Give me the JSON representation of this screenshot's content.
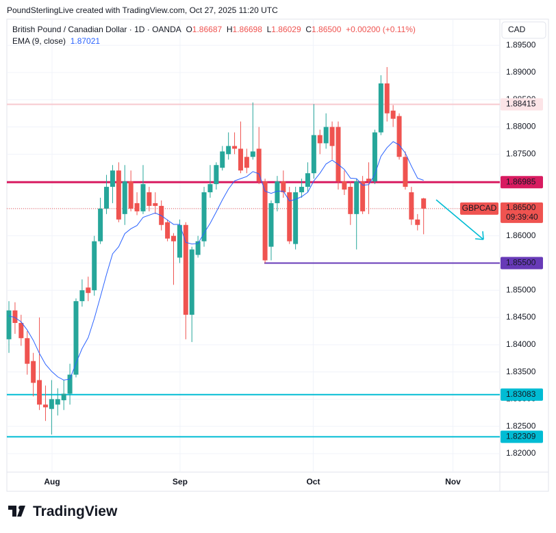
{
  "header": {
    "attribution": "PoundSterlingLive created with TradingView.com, Oct 27, 2025 11:20 UTC",
    "ohlc": [
      {
        "key": "O",
        "value": "1.86687"
      },
      {
        "key": "H",
        "value": "1.86698"
      },
      {
        "key": "L",
        "value": "1.86029"
      },
      {
        "key": "C",
        "value": "1.86500"
      }
    ],
    "change": "+0.00200 (+0.11%)",
    "brand": "TradingView"
  },
  "chart_data": {
    "type": "candlestick",
    "title": "British Pound / Canadian Dollar · 1D · OANDA",
    "currency": "CAD",
    "colors": {
      "up": "#26a69a",
      "down": "#ef5350"
    },
    "open": [
      1.841,
      1.8463,
      1.844,
      1.8412,
      1.837,
      1.8335,
      1.829,
      1.8282,
      1.829,
      1.8298,
      1.831,
      1.8345,
      1.848,
      1.8505,
      1.85,
      1.859,
      1.865,
      1.869,
      1.872,
      1.864,
      1.87,
      1.866,
      1.8645,
      1.868,
      1.866,
      1.8655,
      1.8625,
      1.86,
      1.856,
      1.862,
      1.8455,
      1.8565,
      1.859,
      1.868,
      1.8695,
      1.8725,
      1.875,
      1.8765,
      1.876,
      1.8745,
      1.8745,
      1.876,
      1.87,
      1.858,
      1.866,
      1.87,
      1.868,
      1.8585,
      1.868,
      1.869,
      1.8715,
      1.8785,
      1.877,
      1.88,
      1.88,
      1.87,
      1.869,
      1.864,
      1.87,
      1.8705,
      1.87,
      1.879,
      1.888,
      1.883,
      1.882,
      1.8745,
      1.868,
      1.863,
      1.86687
    ],
    "high": [
      1.848,
      1.8478,
      1.8455,
      1.8425,
      1.8385,
      1.845,
      1.8325,
      1.8335,
      1.832,
      1.8335,
      1.8365,
      1.8485,
      1.852,
      1.8525,
      1.86,
      1.867,
      1.8712,
      1.873,
      1.8735,
      1.873,
      1.872,
      1.868,
      1.873,
      1.869,
      1.868,
      1.8665,
      1.863,
      1.8605,
      1.863,
      1.8625,
      1.858,
      1.86,
      1.869,
      1.873,
      1.8735,
      1.8765,
      1.879,
      1.879,
      1.881,
      1.876,
      1.8845,
      1.88,
      1.8705,
      1.8665,
      1.871,
      1.872,
      1.869,
      1.869,
      1.8705,
      1.8735,
      1.8842,
      1.8795,
      1.8825,
      1.881,
      1.881,
      1.872,
      1.87,
      1.8705,
      1.871,
      1.8735,
      1.8795,
      1.8895,
      1.891,
      1.884,
      1.8825,
      1.8755,
      1.869,
      1.864,
      1.86698
    ],
    "low": [
      1.8385,
      1.842,
      1.8398,
      1.8345,
      1.8305,
      1.828,
      1.826,
      1.8235,
      1.827,
      1.828,
      1.829,
      1.834,
      1.847,
      1.848,
      1.849,
      1.8585,
      1.864,
      1.866,
      1.8625,
      1.862,
      1.8645,
      1.8638,
      1.864,
      1.8645,
      1.864,
      1.861,
      1.859,
      1.851,
      1.855,
      1.841,
      1.8405,
      1.856,
      1.858,
      1.867,
      1.8685,
      1.872,
      1.874,
      1.875,
      1.8715,
      1.8715,
      1.874,
      1.8695,
      1.855,
      1.8555,
      1.8645,
      1.867,
      1.8585,
      1.8575,
      1.867,
      1.868,
      1.8705,
      1.875,
      1.876,
      1.874,
      1.8685,
      1.8675,
      1.862,
      1.8575,
      1.864,
      1.864,
      1.8695,
      1.8785,
      1.881,
      1.88,
      1.874,
      1.8685,
      1.862,
      1.861,
      1.86029
    ],
    "close": [
      1.8463,
      1.844,
      1.8412,
      1.8365,
      1.833,
      1.829,
      1.8285,
      1.83,
      1.83,
      1.831,
      1.8345,
      1.848,
      1.85,
      1.8495,
      1.859,
      1.865,
      1.869,
      1.872,
      1.863,
      1.87,
      1.865,
      1.8645,
      1.8695,
      1.8655,
      1.8655,
      1.862,
      1.8595,
      1.859,
      1.862,
      1.8455,
      1.8575,
      1.859,
      1.868,
      1.8695,
      1.873,
      1.8755,
      1.8765,
      1.876,
      1.872,
      1.8725,
      1.8755,
      1.87,
      1.8555,
      1.866,
      1.87,
      1.868,
      1.859,
      1.868,
      1.869,
      1.8715,
      1.8785,
      1.877,
      1.88,
      1.8765,
      1.87,
      1.8685,
      1.864,
      1.87,
      1.8645,
      1.87,
      1.879,
      1.888,
      1.8825,
      1.8815,
      1.8745,
      1.869,
      1.863,
      1.862,
      1.865
    ],
    "ema": {
      "name": "EMA (9, close)",
      "color": "#2962ff",
      "value_label": "1.87021",
      "values": [
        1.8453,
        1.845,
        1.8442,
        1.8427,
        1.8408,
        1.8384,
        1.8364,
        1.8351,
        1.8341,
        1.8335,
        1.8337,
        1.8366,
        1.8393,
        1.8413,
        1.8448,
        1.8488,
        1.8529,
        1.8567,
        1.858,
        1.8604,
        1.8613,
        1.8619,
        1.8634,
        1.8638,
        1.8642,
        1.8637,
        1.8629,
        1.8621,
        1.8621,
        1.8588,
        1.8585,
        1.8586,
        1.8605,
        1.8623,
        1.8644,
        1.8666,
        1.8686,
        1.8701,
        1.8705,
        1.8709,
        1.8718,
        1.8714,
        1.8682,
        1.8678,
        1.8682,
        1.8682,
        1.8664,
        1.8667,
        1.8672,
        1.868,
        1.8701,
        1.8715,
        1.8732,
        1.8739,
        1.8731,
        1.8722,
        1.8706,
        1.8705,
        1.8693,
        1.8694,
        1.8713,
        1.8746,
        1.8762,
        1.8773,
        1.8767,
        1.8752,
        1.8728,
        1.8706,
        1.8702
      ]
    },
    "levels": [
      {
        "value": 1.88415,
        "label": "1.88415",
        "color": "#f7c9cf"
      },
      {
        "value": 1.86985,
        "label": "1.86985",
        "color": "#d81b60"
      },
      {
        "value": 1.855,
        "label": "1.85500",
        "color": "#673ab7"
      },
      {
        "value": 1.83083,
        "label": "1.83083",
        "color": "#00bcd4"
      },
      {
        "value": 1.82309,
        "label": "1.82309",
        "color": "#00bcd4"
      }
    ],
    "price_line": {
      "value": 1.865,
      "label": "1.86500",
      "symbol": "GBPCAD",
      "countdown": "09:39:40",
      "color": "#ef5350"
    },
    "ylim": [
      1.8166,
      1.8998
    ],
    "yticks": [
      {
        "value": 1.895,
        "label": "1.89500"
      },
      {
        "value": 1.89,
        "label": "1.89000"
      },
      {
        "value": 1.885,
        "label": "1.88500"
      },
      {
        "value": 1.88,
        "label": "1.88000"
      },
      {
        "value": 1.875,
        "label": "1.87500"
      },
      {
        "value": 1.87,
        "label": "1.87000"
      },
      {
        "value": 1.865,
        "label": "1.86500"
      },
      {
        "value": 1.86,
        "label": "1.86000"
      },
      {
        "value": 1.855,
        "label": "1.85500"
      },
      {
        "value": 1.85,
        "label": "1.85000"
      },
      {
        "value": 1.845,
        "label": "1.84500"
      },
      {
        "value": 1.84,
        "label": "1.84000"
      },
      {
        "value": 1.835,
        "label": "1.83500"
      },
      {
        "value": 1.83,
        "label": "1.83000"
      },
      {
        "value": 1.825,
        "label": "1.82500"
      },
      {
        "value": 1.82,
        "label": "1.82000"
      }
    ],
    "xlim": [
      -0.34,
      80.5
    ],
    "xticks": [
      {
        "value": 7.07,
        "label": "Aug"
      },
      {
        "value": 28.06,
        "label": "Sep"
      },
      {
        "value": 49.9,
        "label": "Oct"
      },
      {
        "value": 72.8,
        "label": "Nov"
      }
    ]
  }
}
